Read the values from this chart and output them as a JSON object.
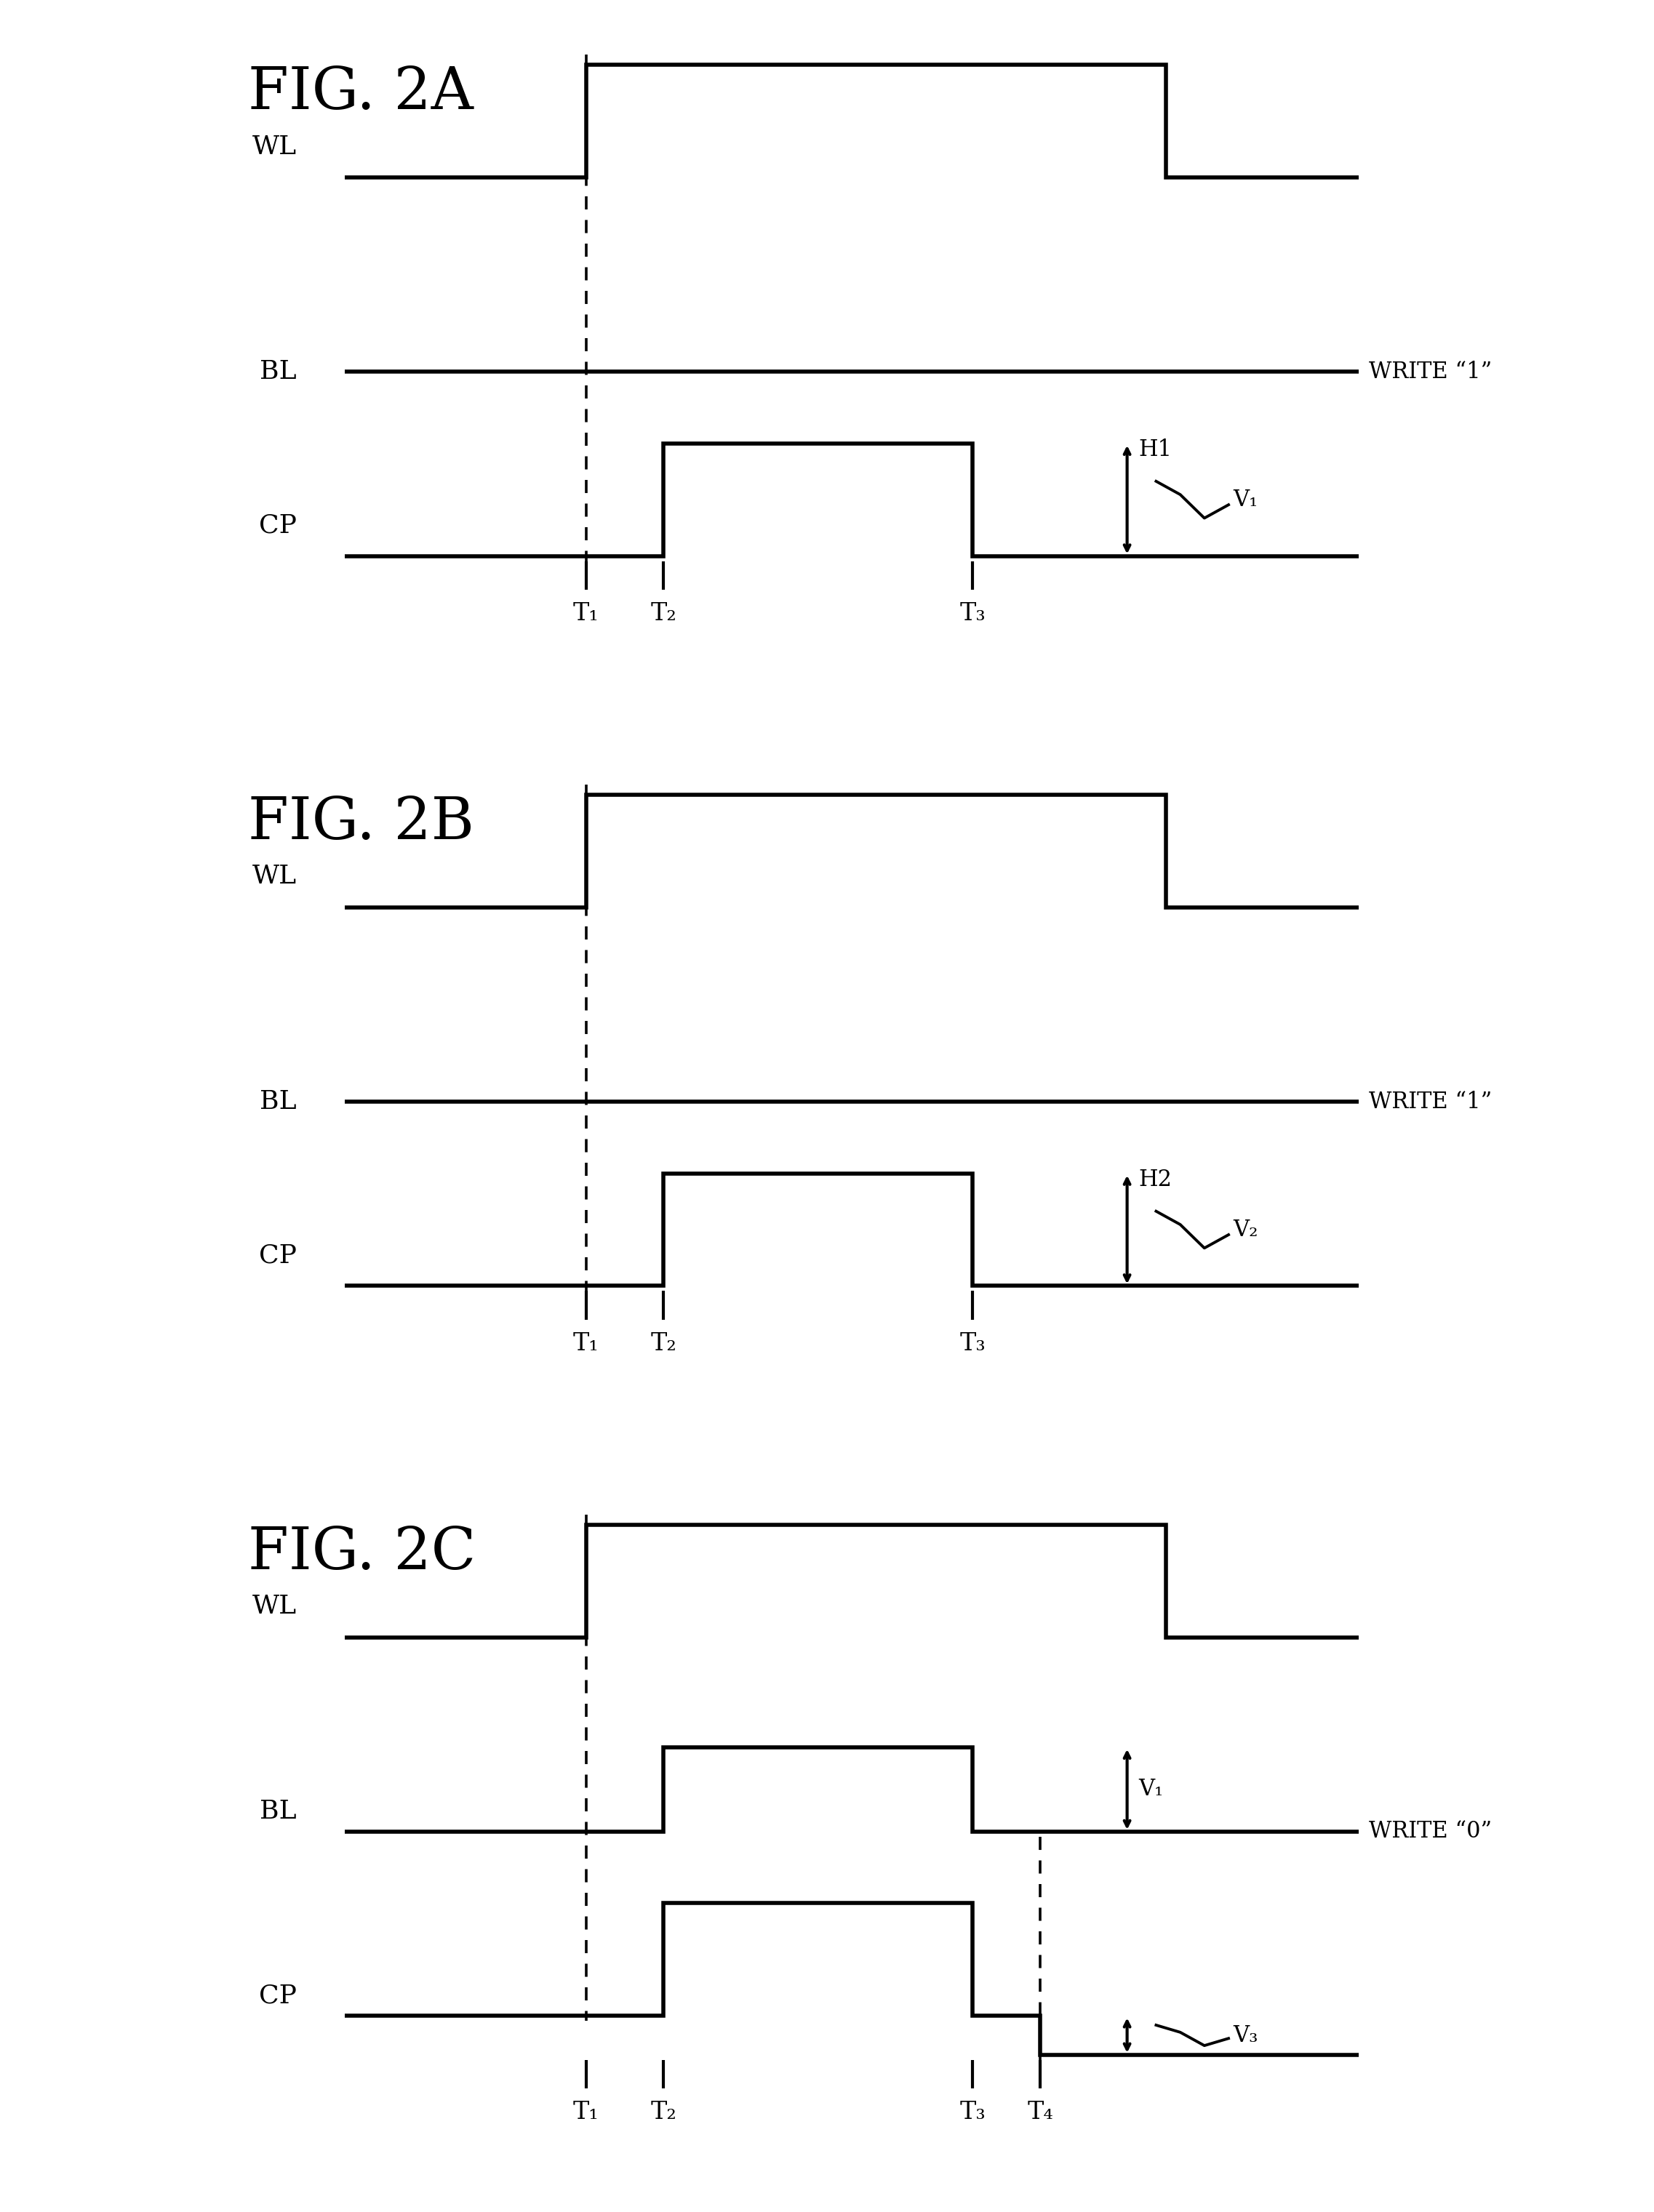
{
  "fig_title_A": "FIG. 2A",
  "fig_title_B": "FIG. 2B",
  "fig_title_C": "FIG. 2C",
  "background_color": "#ffffff",
  "line_color": "#000000",
  "line_width": 4.0,
  "write1_label": "WRITE “1”",
  "write0_label": "WRITE “0”",
  "figA": {
    "T1": 2.5,
    "T2": 3.3,
    "T3": 6.5,
    "H_label": "H1",
    "V_label": "V₁"
  },
  "figB": {
    "T1": 2.5,
    "T2": 3.3,
    "T3": 6.5,
    "H_label": "H2",
    "V_label": "V₂"
  },
  "figC": {
    "T1": 2.5,
    "T2": 3.3,
    "T3": 6.5,
    "T4": 7.2,
    "V_label_BL": "V₁",
    "V_label_CP": "V₃"
  },
  "signal_label_fontsize": 26,
  "tick_label_fontsize": 24,
  "annotation_fontsize": 22,
  "fig_title_fontsize": 58
}
